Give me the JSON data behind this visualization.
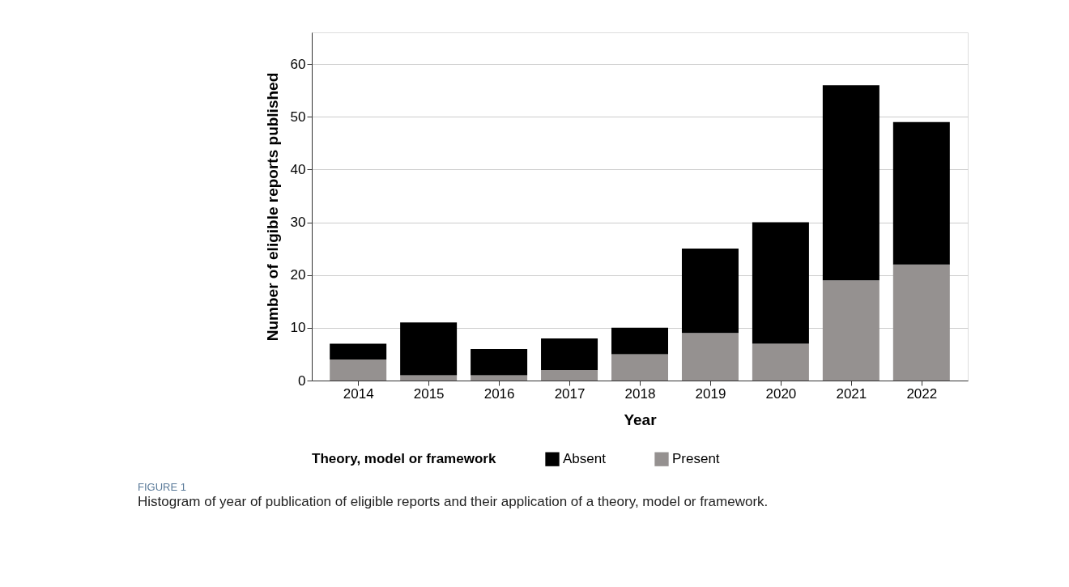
{
  "chart_data": {
    "type": "bar",
    "stacked": true,
    "xlabel": "Year",
    "ylabel": "Number of eligible reports published",
    "legend_title": "Theory, model or framework",
    "categories": [
      "2014",
      "2015",
      "2016",
      "2017",
      "2018",
      "2019",
      "2020",
      "2021",
      "2022"
    ],
    "series": [
      {
        "name": "Present",
        "color": "#959190",
        "values": [
          4,
          1,
          1,
          2,
          5,
          9,
          7,
          19,
          22
        ]
      },
      {
        "name": "Absent",
        "color": "#000000",
        "values": [
          3,
          10,
          5,
          6,
          5,
          16,
          23,
          37,
          27
        ]
      }
    ],
    "ylim": [
      0,
      66
    ],
    "yticks": [
      0,
      10,
      20,
      30,
      40,
      50,
      60
    ],
    "grid": "y",
    "legend": "bottom",
    "annotations": [
      "FIGURE 1",
      "Histogram of year of publication of eligible reports and their application of a theory, model or framework."
    ]
  }
}
